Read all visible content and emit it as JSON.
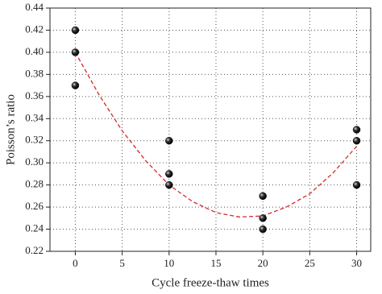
{
  "chart_data": {
    "type": "scatter",
    "x_label": "Cycle freeze-thaw times",
    "y_label": "Poisson’s ratio",
    "xlim": [
      -2.7,
      31.5
    ],
    "ylim": [
      0.22,
      0.44
    ],
    "xticks": [
      0,
      5,
      10,
      15,
      20,
      25,
      30
    ],
    "yticks": [
      0.22,
      0.24,
      0.26,
      0.28,
      {
        "value": 0.3,
        "label": "0.30"
      },
      0.32,
      0.34,
      0.36,
      0.38,
      {
        "value": 0.4,
        "label": "0.40"
      },
      0.42,
      0.44
    ],
    "grid": true,
    "series": [
      {
        "type": "scatter",
        "color": "#111111",
        "x": [
          0,
          0,
          0,
          10,
          10,
          10,
          20,
          20,
          20,
          30,
          30,
          30
        ],
        "values": [
          0.42,
          0.4,
          0.37,
          0.32,
          0.29,
          0.28,
          0.27,
          0.25,
          0.24,
          0.33,
          0.32,
          0.28
        ]
      },
      {
        "type": "line",
        "color": "#d62728",
        "x": [
          0,
          2.5,
          5,
          7.5,
          10,
          12.5,
          15,
          17.5,
          20,
          22.5,
          25,
          27.5,
          30
        ],
        "values": [
          0.4,
          0.362,
          0.329,
          0.302,
          0.28,
          0.265,
          0.255,
          0.251,
          0.252,
          0.26,
          0.272,
          0.291,
          0.315
        ]
      }
    ]
  }
}
